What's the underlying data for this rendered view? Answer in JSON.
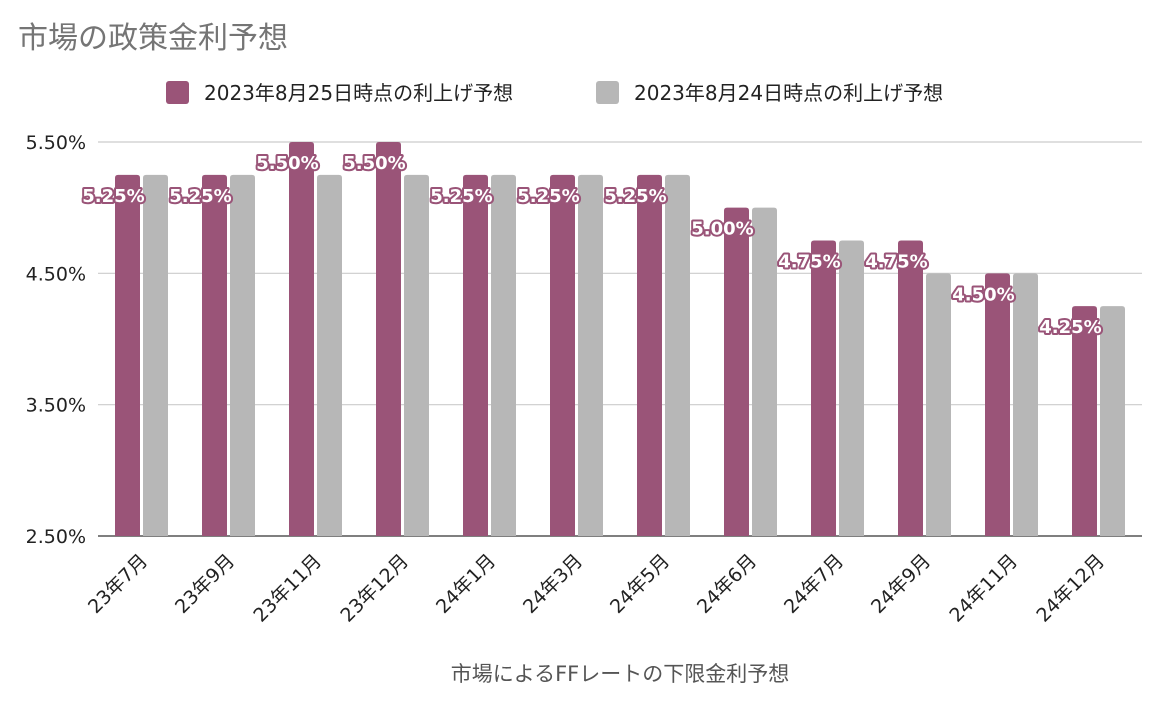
{
  "chart_data": {
    "type": "bar",
    "title": "市場の政策金利予想",
    "xlabel": "市場によるFFレートの下限金利予想",
    "ylabel": "",
    "ylim": [
      2.5,
      5.5
    ],
    "yticks": [
      "2.50%",
      "3.50%",
      "4.50%",
      "5.50%"
    ],
    "ytick_values": [
      2.5,
      3.5,
      4.5,
      5.5
    ],
    "grid": true,
    "legend_position": "top",
    "categories": [
      "23年7月",
      "23年9月",
      "23年11月",
      "23年12月",
      "24年1月",
      "24年3月",
      "24年5月",
      "24年6月",
      "24年7月",
      "24年9月",
      "24年11月",
      "24年12月"
    ],
    "series": [
      {
        "name": "2023年8月25日時点の利上げ予想",
        "color": "#9a5478",
        "values": [
          5.25,
          5.25,
          5.5,
          5.5,
          5.25,
          5.25,
          5.25,
          5.0,
          4.75,
          4.75,
          4.5,
          4.25
        ],
        "data_labels": [
          "5.25%",
          "5.25%",
          "5.50%",
          "5.50%",
          "5.25%",
          "5.25%",
          "5.25%",
          "5.00%",
          "4.75%",
          "4.75%",
          "4.50%",
          "4.25%"
        ]
      },
      {
        "name": "2023年8月24日時点の利上げ予想",
        "color": "#b7b7b7",
        "values": [
          5.25,
          5.25,
          5.25,
          5.25,
          5.25,
          5.25,
          5.25,
          5.0,
          4.75,
          4.5,
          4.5,
          4.25
        ]
      }
    ]
  }
}
